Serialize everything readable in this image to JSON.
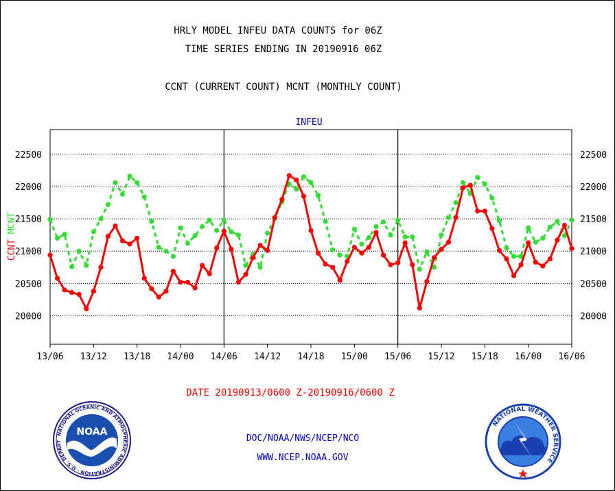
{
  "header": {
    "line1": "HRLY MODEL INFEU DATA COUNTS for 06Z",
    "line2": "TIME SERIES ENDING IN 20190916 06Z",
    "line3": "CCNT (CURRENT COUNT) MCNT (MONTHLY COUNT)"
  },
  "footer": {
    "date_range": "DATE 20190913/0600 Z-20190916/0600 Z",
    "org": "DOC/NOAA/NWS/NCEP/NCO",
    "url": "WWW.NCEP.NOAA.GOV"
  },
  "logos": {
    "noaa": {
      "text": "NOAA",
      "ring_text": "NATIONAL OCEANIC AND ATMOSPHERIC ADMINISTRATION · U.S. DEPARTMENT OF COMMERCE"
    },
    "nws": {
      "ring_text": "NATIONAL WEATHER SERVICE"
    }
  },
  "colors": {
    "ccnt": "#ff0000",
    "mcnt": "#33dd33",
    "title": "#0000cc",
    "grid": "#000000"
  },
  "chart_data": {
    "type": "line",
    "title": "INFEU",
    "ylabel_left": [
      "CCNT",
      "MCNT"
    ],
    "ylim": [
      19560,
      22880
    ],
    "yticks": [
      20000,
      20500,
      21000,
      21500,
      22000,
      22500
    ],
    "ytick_labels": [
      "20000",
      "20500",
      "21000",
      "21500",
      "22000",
      "22500"
    ],
    "xlim": [
      0,
      72
    ],
    "xticks": [
      0,
      6,
      12,
      18,
      24,
      30,
      36,
      42,
      48,
      54,
      60,
      66,
      72
    ],
    "xtick_labels": [
      "13/06",
      "13/12",
      "13/18",
      "14/00",
      "14/06",
      "14/12",
      "14/18",
      "15/00",
      "15/06",
      "15/12",
      "15/18",
      "16/00",
      "16/06"
    ],
    "day_dividers": [
      24,
      48
    ],
    "grid": true,
    "series": [
      {
        "name": "MCNT",
        "style": "dashed",
        "color": "#33dd33",
        "values": [
          21490,
          21200,
          21260,
          20760,
          21000,
          20780,
          21300,
          21500,
          21720,
          22060,
          21880,
          22160,
          22060,
          21840,
          21460,
          21060,
          21000,
          20920,
          21360,
          21120,
          21240,
          21380,
          21480,
          21320,
          21480,
          21300,
          21250,
          20780,
          20950,
          20750,
          21280,
          21500,
          21760,
          22040,
          21960,
          22150,
          22060,
          21860,
          21460,
          21020,
          20940,
          20920,
          21340,
          21110,
          21210,
          21380,
          21450,
          21250,
          21480,
          21220,
          21220,
          20720,
          20990,
          20750,
          21250,
          21520,
          21750,
          22060,
          21890,
          22140,
          22040,
          21820,
          21470,
          21050,
          20920,
          20920,
          21360,
          21140,
          21200,
          21370,
          21460,
          21240,
          21480
        ]
      },
      {
        "name": "CCNT",
        "style": "solid",
        "color": "#ff0000",
        "values": [
          20940,
          20580,
          20400,
          20360,
          20330,
          20110,
          20380,
          20750,
          21230,
          21390,
          21160,
          21110,
          21200,
          20580,
          20420,
          20290,
          20380,
          20690,
          20520,
          20520,
          20430,
          20780,
          20650,
          21050,
          21310,
          21030,
          20520,
          20640,
          20900,
          21090,
          21010,
          21520,
          21800,
          22170,
          22100,
          21850,
          21320,
          20970,
          20800,
          20750,
          20550,
          20840,
          21060,
          20970,
          21060,
          21290,
          20940,
          20790,
          20820,
          21130,
          20790,
          20120,
          20530,
          20900,
          21030,
          21140,
          21520,
          21980,
          22020,
          21620,
          21620,
          21350,
          21010,
          20880,
          20620,
          20790,
          21130,
          20830,
          20770,
          20880,
          21170,
          21400,
          21040
        ]
      }
    ]
  }
}
